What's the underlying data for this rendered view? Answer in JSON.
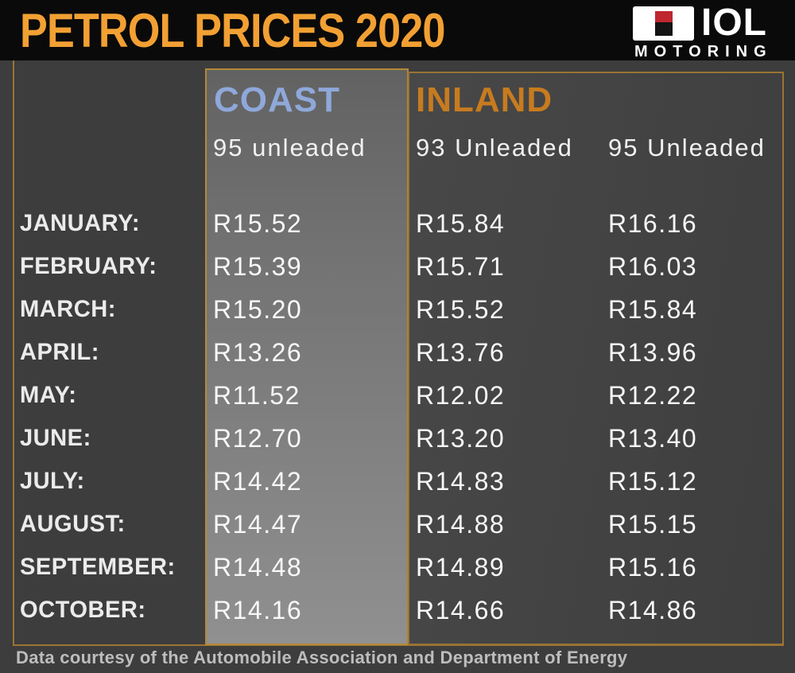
{
  "header": {
    "title": "PETROL PRICES 2020",
    "logo": {
      "iol": "IOL",
      "motoring": "MOTORING"
    }
  },
  "table": {
    "coast": {
      "label": "COAST",
      "sub": "95 unleaded"
    },
    "inland": {
      "label": "INLAND",
      "sub_93": "93 Unleaded",
      "sub_95": "95 Unleaded"
    },
    "rows": [
      {
        "month": "JANUARY:",
        "coast_95": "R15.52",
        "inland_93": "R15.84",
        "inland_95": "R16.16"
      },
      {
        "month": "FEBRUARY:",
        "coast_95": "R15.39",
        "inland_93": "R15.71",
        "inland_95": "R16.03"
      },
      {
        "month": "MARCH:",
        "coast_95": "R15.20",
        "inland_93": "R15.52",
        "inland_95": "R15.84"
      },
      {
        "month": "APRIL:",
        "coast_95": "R13.26",
        "inland_93": "R13.76",
        "inland_95": "R13.96"
      },
      {
        "month": "MAY:",
        "coast_95": "R11.52",
        "inland_93": "R12.02",
        "inland_95": "R12.22"
      },
      {
        "month": "JUNE:",
        "coast_95": "R12.70",
        "inland_93": "R13.20",
        "inland_95": "R13.40"
      },
      {
        "month": "JULY:",
        "coast_95": "R14.42",
        "inland_93": "R14.83",
        "inland_95": "R15.12"
      },
      {
        "month": "AUGUST:",
        "coast_95": "R14.47",
        "inland_93": "R14.88",
        "inland_95": "R15.15"
      },
      {
        "month": "SEPTEMBER:",
        "coast_95": "R14.48",
        "inland_93": "R14.89",
        "inland_95": "R15.16"
      },
      {
        "month": "OCTOBER:",
        "coast_95": "R14.16",
        "inland_93": "R14.66",
        "inland_95": "R14.86"
      }
    ]
  },
  "footer": {
    "credit": "Data courtesy of the Automobile Association and Department of Energy"
  },
  "colors": {
    "title_orange": "#f2a033",
    "coast_blue": "#8fa8da",
    "inland_orange": "#c77b1f",
    "border_tan": "#9a7434",
    "logo_red": "#bf2630",
    "band_black": "#0a0a0a",
    "background_gray": "#3d3d3d"
  },
  "chart_data": {
    "type": "table",
    "title": "PETROL PRICES 2020",
    "categories": [
      "JANUARY",
      "FEBRUARY",
      "MARCH",
      "APRIL",
      "MAY",
      "JUNE",
      "JULY",
      "AUGUST",
      "SEPTEMBER",
      "OCTOBER"
    ],
    "series": [
      {
        "name": "COAST 95 unleaded",
        "values": [
          15.52,
          15.39,
          15.2,
          13.26,
          11.52,
          12.7,
          14.42,
          14.47,
          14.48,
          14.16
        ]
      },
      {
        "name": "INLAND 93 Unleaded",
        "values": [
          15.84,
          15.71,
          15.52,
          13.76,
          12.02,
          13.2,
          14.83,
          14.88,
          14.89,
          14.66
        ]
      },
      {
        "name": "INLAND 95 Unleaded",
        "values": [
          16.16,
          16.03,
          15.84,
          13.96,
          12.22,
          13.4,
          15.12,
          15.15,
          15.16,
          14.86
        ]
      }
    ],
    "currency_prefix": "R",
    "source": "Data courtesy of the Automobile Association and Department of Energy"
  }
}
